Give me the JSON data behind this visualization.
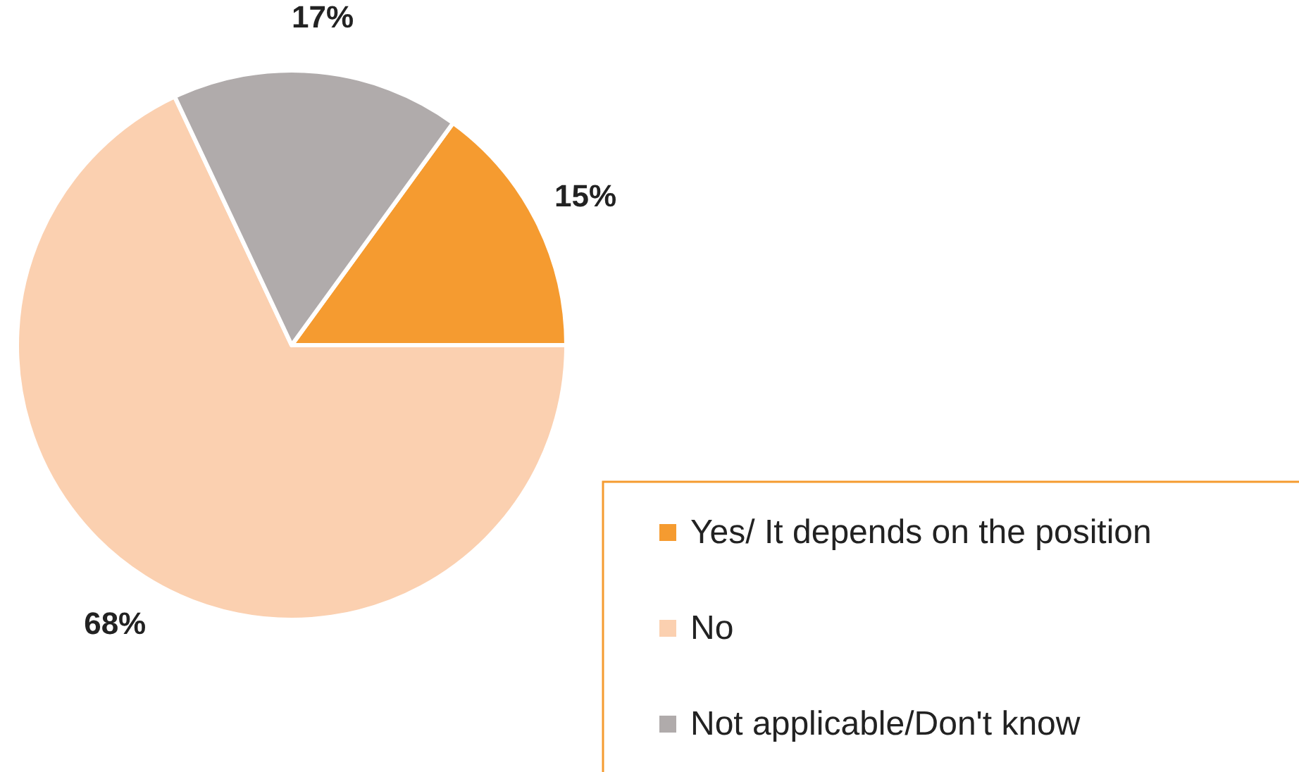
{
  "chart_data": {
    "type": "pie",
    "categories": [
      "Yes/ It depends on the position",
      "No",
      "Not applicable/Don't know"
    ],
    "values": [
      15,
      68,
      17
    ],
    "colors": [
      "#f59b30",
      "#fbd0b0",
      "#b0abab"
    ],
    "value_labels": [
      "15%",
      "68%",
      "17%"
    ],
    "legend": "bottom right"
  }
}
